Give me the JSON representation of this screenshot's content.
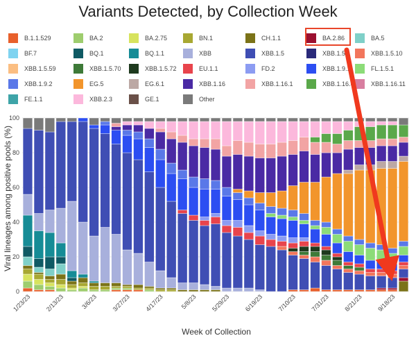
{
  "chart_data": {
    "type": "bar",
    "stacked": true,
    "title": "Variants Detected, by Collection Week",
    "xlabel": "Week of Collection",
    "ylabel": "Viral lineages among positive pools (%)",
    "ylim": [
      0,
      100
    ],
    "yticks": [
      0,
      20,
      40,
      60,
      80,
      100
    ],
    "grid": true,
    "legend_placement": "top",
    "x_tick_labels": [
      "1/23/23",
      "2/13/23",
      "3/6/23",
      "3/27/23",
      "4/17/23",
      "5/8/23",
      "5/29/23",
      "6/19/23",
      "7/10/23",
      "7/31/23",
      "8/21/23",
      "9/18/23"
    ],
    "week_interval": 1,
    "num_bars": 35,
    "highlighted_series": "BA.2.86",
    "series": [
      {
        "name": "B.1.1.529",
        "color": "#e8602c"
      },
      {
        "name": "BA.2",
        "color": "#9ecd6e"
      },
      {
        "name": "BA.2.75",
        "color": "#d7e35e"
      },
      {
        "name": "BN.1",
        "color": "#a8a832"
      },
      {
        "name": "CH.1.1",
        "color": "#7b7318"
      },
      {
        "name": "BA.2.86",
        "color": "#9b1030"
      },
      {
        "name": "BA.5",
        "color": "#7fd0c8"
      },
      {
        "name": "BF.7",
        "color": "#7fd3f0"
      },
      {
        "name": "BQ.1",
        "color": "#0f5a64"
      },
      {
        "name": "BQ.1.1",
        "color": "#168c96"
      },
      {
        "name": "XBB",
        "color": "#a8b0dc"
      },
      {
        "name": "XBB.1.5",
        "color": "#3f4eb4"
      },
      {
        "name": "XBB.1.5.1",
        "color": "#2a2a7a"
      },
      {
        "name": "XBB.1.5.10",
        "color": "#f2765c"
      },
      {
        "name": "XBB.1.5.59",
        "color": "#fbbe82"
      },
      {
        "name": "XBB.1.5.70",
        "color": "#3e7a38"
      },
      {
        "name": "XBB.1.5.72",
        "color": "#1e3a1e"
      },
      {
        "name": "EU.1.1",
        "color": "#e8444c"
      },
      {
        "name": "FD.2",
        "color": "#8c9cf2"
      },
      {
        "name": "XBB.1.9.1",
        "color": "#2c4ef2"
      },
      {
        "name": "FL.1.5.1",
        "color": "#8cdc78"
      },
      {
        "name": "XBB.1.9.2",
        "color": "#5a78e8"
      },
      {
        "name": "EG.5",
        "color": "#f2952c"
      },
      {
        "name": "EG.6.1",
        "color": "#bca8a4"
      },
      {
        "name": "XBB.1.16",
        "color": "#4a2aa4"
      },
      {
        "name": "XBB.1.16.1",
        "color": "#f2a4a4"
      },
      {
        "name": "XBB.1.16.6",
        "color": "#5aa84a"
      },
      {
        "name": "XBB.1.16.11",
        "color": "#d87ea0"
      },
      {
        "name": "FE.1.1",
        "color": "#3ea4a8"
      },
      {
        "name": "XBB.2.3",
        "color": "#fcb8dc"
      },
      {
        "name": "GE.1",
        "color": "#6a5048"
      },
      {
        "name": "Other",
        "color": "#7a7a7a"
      }
    ],
    "bars": [
      {
        "B.1.1.529": 2,
        "BA.2": 4,
        "BA.2.75": 4,
        "BN.1": 3,
        "CH.1.1": 2,
        "BA.5": 5,
        "BQ.1": 6,
        "BQ.1.1": 18,
        "XBB": 12,
        "XBB.1.5": 38,
        "Other": 6
      },
      {
        "B.1.1.529": 1,
        "BA.2": 3,
        "BA.2.75": 3,
        "BN.1": 3,
        "CH.1.1": 1,
        "BA.5": 3,
        "BQ.1": 5,
        "BQ.1.1": 16,
        "XBB": 10,
        "XBB.1.5": 48,
        "Other": 7
      },
      {
        "B.1.1.529": 1,
        "BA.2": 2,
        "BA.2.75": 2,
        "BN.1": 2,
        "CH.1.1": 2,
        "BA.5": 4,
        "BQ.1": 7,
        "BQ.1.1": 14,
        "XBB": 13,
        "XBB.1.5": 45,
        "Other": 8
      },
      {
        "BA.2": 2,
        "BA.2.75": 2,
        "BN.1": 3,
        "CH.1.1": 3,
        "BA.5": 6,
        "BQ.1": 4,
        "BQ.1.1": 8,
        "XBB": 20,
        "XBB.1.5": 50,
        "Other": 2
      },
      {
        "BA.2": 1,
        "BA.2.75": 1,
        "BN.1": 2,
        "CH.1.1": 2,
        "BQ.1": 2,
        "BQ.1.1": 4,
        "XBB": 40,
        "XBB.1.5": 46,
        "Other": 2
      },
      {
        "BA.2": 2,
        "BA.2.75": 1,
        "BN.1": 2,
        "CH.1.1": 3,
        "BQ.1.1": 2,
        "XBB": 30,
        "XBB.1.5": 58,
        "XBB.1.9.1": 2
      },
      {
        "BA.2": 1,
        "BN.1": 2,
        "CH.1.1": 2,
        "BQ.1.1": 1,
        "XBB": 26,
        "XBB.1.5": 62,
        "XBB.1.9.1": 2,
        "Other": 4
      },
      {
        "BA.2": 1,
        "BN.1": 2,
        "CH.1.1": 2,
        "XBB": 32,
        "XBB.1.5": 54,
        "XBB.1.9.1": 5,
        "XBB.1.9.2": 2,
        "Other": 2
      },
      {
        "B.1.1.529": 1,
        "BA.2": 1,
        "BN.1": 1,
        "CH.1.1": 2,
        "XBB": 28,
        "XBB.1.5": 52,
        "XBB.1.9.1": 8,
        "XBB.1.16": 2,
        "XBB.1.16.1": 2,
        "Other": 3
      },
      {
        "B.1.1.529": 1,
        "BA.2": 1,
        "BN.1": 1,
        "CH.1.1": 1,
        "XBB": 20,
        "XBB.1.5": 56,
        "XBB.1.9.1": 10,
        "XBB.1.9.2": 3,
        "XBB.1.16": 3,
        "XBB.2.3": 2,
        "Other": 2
      },
      {
        "B.1.1.529": 1,
        "BN.1": 1,
        "CH.1.1": 2,
        "XBB": 18,
        "XBB.1.5": 54,
        "XBB.1.9.1": 12,
        "XBB.1.9.2": 4,
        "XBB.1.16": 4,
        "XBB.2.3": 2,
        "Other": 2
      },
      {
        "BA.2": 1,
        "BN.1": 1,
        "CH.1.1": 1,
        "XBB": 14,
        "XBB.1.5": 52,
        "XBB.1.9.1": 14,
        "XBB.1.9.2": 5,
        "XBB.1.16": 6,
        "XBB.2.3": 4,
        "Other": 2
      },
      {
        "BN.1": 1,
        "CH.1.1": 1,
        "XBB": 10,
        "XBB.1.5": 48,
        "XBB.1.9.1": 16,
        "XBB.1.9.2": 6,
        "XBB.1.16": 10,
        "XBB.1.16.1": 2,
        "XBB.2.3": 4,
        "Other": 2
      },
      {
        "BN.1": 1,
        "CH.1.1": 1,
        "XBB": 6,
        "XBB.1.5": 44,
        "XBB.1.9.1": 16,
        "XBB.1.9.2": 6,
        "XBB.1.16": 14,
        "XBB.1.16.1": 4,
        "XBB.2.3": 6,
        "Other": 2
      },
      {
        "CH.1.1": 1,
        "XBB": 4,
        "XBB.1.5": 40,
        "XBB.1.9.1": 18,
        "XBB.1.9.2": 5,
        "EU.1.1": 2,
        "XBB.1.16": 16,
        "XBB.1.16.1": 4,
        "XBB.2.3": 8,
        "Other": 2
      },
      {
        "CH.1.1": 1,
        "XBB": 4,
        "XBB.1.5": 36,
        "XBB.1.9.1": 16,
        "XBB.1.9.2": 6,
        "EU.1.1": 3,
        "XBB.1.16": 18,
        "XBB.1.16.1": 4,
        "XBB.2.3": 10,
        "Other": 2
      },
      {
        "CH.1.1": 1,
        "XBB": 3,
        "XBB.1.5": 34,
        "XBB.1.9.1": 16,
        "XBB.1.9.2": 6,
        "FD.2": 2,
        "EU.1.1": 3,
        "XBB.1.16": 18,
        "XBB.1.16.1": 5,
        "XBB.2.3": 10,
        "Other": 2
      },
      {
        "CH.1.1": 1,
        "XBB": 2,
        "XBB.1.5": 36,
        "XBB.1.9.1": 14,
        "XBB.1.9.2": 5,
        "FD.2": 2,
        "EU.1.1": 4,
        "XBB.1.16": 18,
        "XBB.1.16.1": 6,
        "XBB.2.3": 10,
        "Other": 2
      },
      {
        "XBB": 2,
        "XBB.1.5": 32,
        "XBB.1.9.1": 14,
        "XBB.1.9.2": 5,
        "FD.2": 3,
        "EU.1.1": 4,
        "XBB.1.16": 18,
        "XBB.1.16.1": 6,
        "XBB.2.3": 14,
        "Other": 2
      },
      {
        "XBB": 2,
        "XBB.1.5": 30,
        "XBB.1.9.1": 12,
        "XBB.1.9.2": 4,
        "FD.2": 4,
        "EU.1.1": 5,
        "XBB.1.16": 20,
        "XBB.1.16.1": 8,
        "EG.5": 2,
        "XBB.2.3": 11,
        "Other": 2
      },
      {
        "XBB": 2,
        "XBB.1.5": 28,
        "XBB.1.9.1": 12,
        "XBB.1.9.2": 4,
        "FD.2": 4,
        "EU.1.1": 4,
        "XBB.1.16": 20,
        "XBB.1.16.1": 8,
        "EG.5": 4,
        "XBB.2.3": 12,
        "Other": 2
      },
      {
        "XBB": 1,
        "XBB.1.5": 26,
        "XBB.1.9.1": 12,
        "XBB.1.9.2": 4,
        "FD.2": 3,
        "EU.1.1": 5,
        "XBB.1.16": 20,
        "XBB.1.16.1": 8,
        "EG.5": 6,
        "XBB.2.3": 13,
        "Other": 2
      },
      {
        "XBB.1.5": 26,
        "XBB.1.9.1": 10,
        "XBB.1.9.2": 4,
        "FD.2": 3,
        "EU.1.1": 4,
        "XBB.1.16": 20,
        "XBB.1.16.1": 8,
        "EG.5": 8,
        "FL.1.5.1": 2,
        "XBB.2.3": 13,
        "Other": 2
      },
      {
        "XBB.1.5": 24,
        "XBB.1.9.1": 10,
        "XBB.1.9.2": 4,
        "FD.2": 3,
        "XBB.1.5.10": 2,
        "EU.1.1": 3,
        "XBB.1.16": 20,
        "XBB.1.16.1": 8,
        "EG.5": 10,
        "FL.1.5.1": 2,
        "XBB.2.3": 12,
        "Other": 2
      },
      {
        "B.1.1.529": 1,
        "XBB.1.5": 20,
        "XBB.1.5.72": 2,
        "XBB.1.9.1": 10,
        "XBB.1.9.2": 4,
        "FD.2": 3,
        "XBB.1.5.10": 2,
        "EU.1.1": 3,
        "XBB.1.16": 18,
        "XBB.1.16.1": 8,
        "EG.5": 14,
        "FL.1.5.1": 2,
        "XBB.2.3": 11,
        "Other": 2
      },
      {
        "B.1.1.529": 1,
        "XBB.1.5": 18,
        "XBB.1.5.70": 2,
        "XBB.1.5.72": 3,
        "XBB.1.9.1": 8,
        "XBB.1.9.2": 4,
        "FD.2": 2,
        "XBB.1.5.10": 2,
        "EU.1.1": 3,
        "XBB.1.16": 18,
        "XBB.1.16.1": 8,
        "EG.5": 18,
        "FL.1.5.1": 2,
        "XBB.2.3": 9,
        "Other": 2
      },
      {
        "B.1.1.529": 2,
        "XBB.1.5": 15,
        "XBB.1.5.70": 3,
        "XBB.1.5.72": 3,
        "XBB.1.9.1": 8,
        "XBB.1.9.2": 3,
        "XBB.1.5.10": 3,
        "EU.1.1": 2,
        "XBB.1.16": 16,
        "XBB.1.16.1": 7,
        "XBB.1.16.6": 3,
        "EG.5": 22,
        "FL.1.5.1": 2,
        "XBB.2.3": 9,
        "Other": 2
      },
      {
        "B.1.1.529": 1,
        "XBB.1.5": 14,
        "XBB.1.5.70": 3,
        "XBB.1.5.72": 3,
        "XBB.1.9.1": 7,
        "XBB.1.9.2": 3,
        "XBB.1.5.10": 3,
        "EU.1.1": 2,
        "XBB.1.16": 14,
        "XBB.1.16.1": 6,
        "XBB.1.16.6": 5,
        "EG.5": 26,
        "FL.1.5.1": 4,
        "XBB.2.3": 7,
        "Other": 2
      },
      {
        "B.1.1.529": 1,
        "XBB.1.5": 12,
        "XBB.1.5.70": 3,
        "XBB.1.5.72": 2,
        "XBB.1.9.1": 6,
        "XBB.1.9.2": 3,
        "XBB.1.5.10": 2,
        "EU.1.1": 2,
        "XBB.1.16": 12,
        "XBB.1.16.1": 5,
        "XBB.1.16.6": 6,
        "EG.5": 32,
        "FL.1.5.1": 5,
        "XBB.2.3": 7,
        "Other": 2
      },
      {
        "B.1.1.529": 1,
        "XBB.1.5": 10,
        "XBB.1.5.70": 2,
        "XBB.1.9.1": 6,
        "XBB.1.9.2": 3,
        "XBB.1.5.10": 2,
        "EU.1.1": 2,
        "XBB.1.16": 12,
        "XBB.1.16.1": 5,
        "XBB.1.16.6": 6,
        "EG.5": 36,
        "EG.6.1": 2,
        "FL.1.5.1": 6,
        "XBB.2.3": 5,
        "Other": 2
      },
      {
        "B.1.1.529": 1,
        "XBB.1.5": 9,
        "XBB.1.5.70": 2,
        "XBB.1.9.1": 5,
        "XBB.1.9.2": 3,
        "XBB.1.5.10": 2,
        "EU.1.1": 2,
        "XBB.1.16": 10,
        "XBB.1.16.1": 4,
        "XBB.1.16.6": 8,
        "EG.5": 40,
        "EG.6.1": 3,
        "FL.1.5.1": 6,
        "XBB.2.3": 3,
        "Other": 2
      },
      {
        "B.1.1.529": 1,
        "XBB.1.5": 8,
        "XBB.1.9.1": 5,
        "XBB.1.9.2": 3,
        "XBB.1.5.10": 2,
        "EU.1.1": 2,
        "XBB.1.16": 10,
        "XBB.1.16.1": 4,
        "XBB.1.16.6": 8,
        "EG.5": 42,
        "EG.6.1": 3,
        "FL.1.5.1": 7,
        "XBB.2.3": 3,
        "Other": 2
      },
      {
        "B.1.1.529": 1,
        "BA.2.86": 1,
        "XBB.1.5": 7,
        "XBB.1.9.1": 5,
        "XBB.1.9.2": 3,
        "XBB.1.5.10": 2,
        "EU.1.1": 2,
        "XBB.1.16": 9,
        "XBB.1.16.1": 4,
        "XBB.1.16.6": 8,
        "EG.5": 44,
        "EG.6.1": 4,
        "FL.1.5.1": 6,
        "XBB.2.3": 2,
        "Other": 2
      },
      {
        "B.1.1.529": 1,
        "BA.2.86": 1,
        "XBB.1.5": 6,
        "XBB.1.9.1": 4,
        "XBB.1.9.2": 3,
        "XBB.1.5.10": 2,
        "EU.1.1": 2,
        "XBB.1.16": 9,
        "XBB.1.16.1": 4,
        "XBB.1.16.6": 8,
        "EG.5": 46,
        "EG.6.1": 4,
        "FL.1.5.1": 6,
        "XBB.2.3": 2,
        "Other": 2
      },
      {
        "CH.1.1": 6,
        "BA.2.86": 2,
        "XBB.1.5": 5,
        "XBB.1.9.1": 4,
        "XBB.1.9.2": 3,
        "XBB.1.5.10": 2,
        "EU.1.1": 2,
        "XBB.1.16": 8,
        "XBB.1.16.1": 3,
        "XBB.1.16.6": 7,
        "EG.5": 46,
        "EG.6.1": 3,
        "FL.1.5.1": 5,
        "Other": 4
      }
    ]
  }
}
